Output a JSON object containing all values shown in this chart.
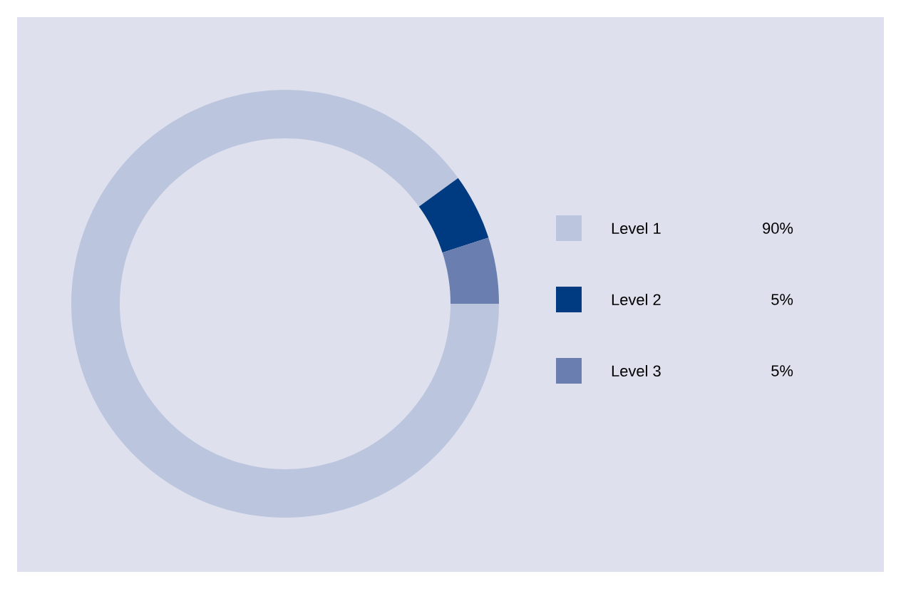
{
  "chart_data": {
    "type": "donut",
    "categories": [
      "Level 1",
      "Level 2",
      "Level 3"
    ],
    "values": [
      90,
      5,
      5
    ],
    "colors": [
      "#bcc5de",
      "#003a80",
      "#6a7fb0"
    ],
    "value_labels": [
      "90%",
      "5%",
      "5%"
    ],
    "legend": "right"
  }
}
